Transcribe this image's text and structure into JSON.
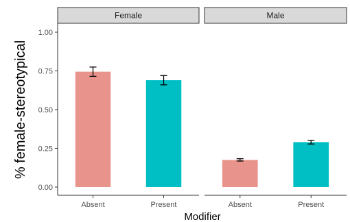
{
  "chart_data": {
    "type": "bar",
    "xlabel": "Modifier",
    "ylabel": "% female-stereotypical",
    "ylim": [
      0,
      1
    ],
    "yticks": [
      "0.00",
      "0.25",
      "0.50",
      "0.75",
      "1.00"
    ],
    "grid": false,
    "legend": "none",
    "categories": [
      "Absent",
      "Present"
    ],
    "colors": {
      "Absent": "#E8948C",
      "Present": "#00BFC4"
    },
    "panels": [
      {
        "label": "Female",
        "bars": [
          {
            "category": "Absent",
            "value": 0.745,
            "err_low": 0.715,
            "err_high": 0.775
          },
          {
            "category": "Present",
            "value": 0.69,
            "err_low": 0.66,
            "err_high": 0.72
          }
        ]
      },
      {
        "label": "Male",
        "bars": [
          {
            "category": "Absent",
            "value": 0.175,
            "err_low": 0.168,
            "err_high": 0.183
          },
          {
            "category": "Present",
            "value": 0.29,
            "err_low": 0.278,
            "err_high": 0.302
          }
        ]
      }
    ]
  }
}
